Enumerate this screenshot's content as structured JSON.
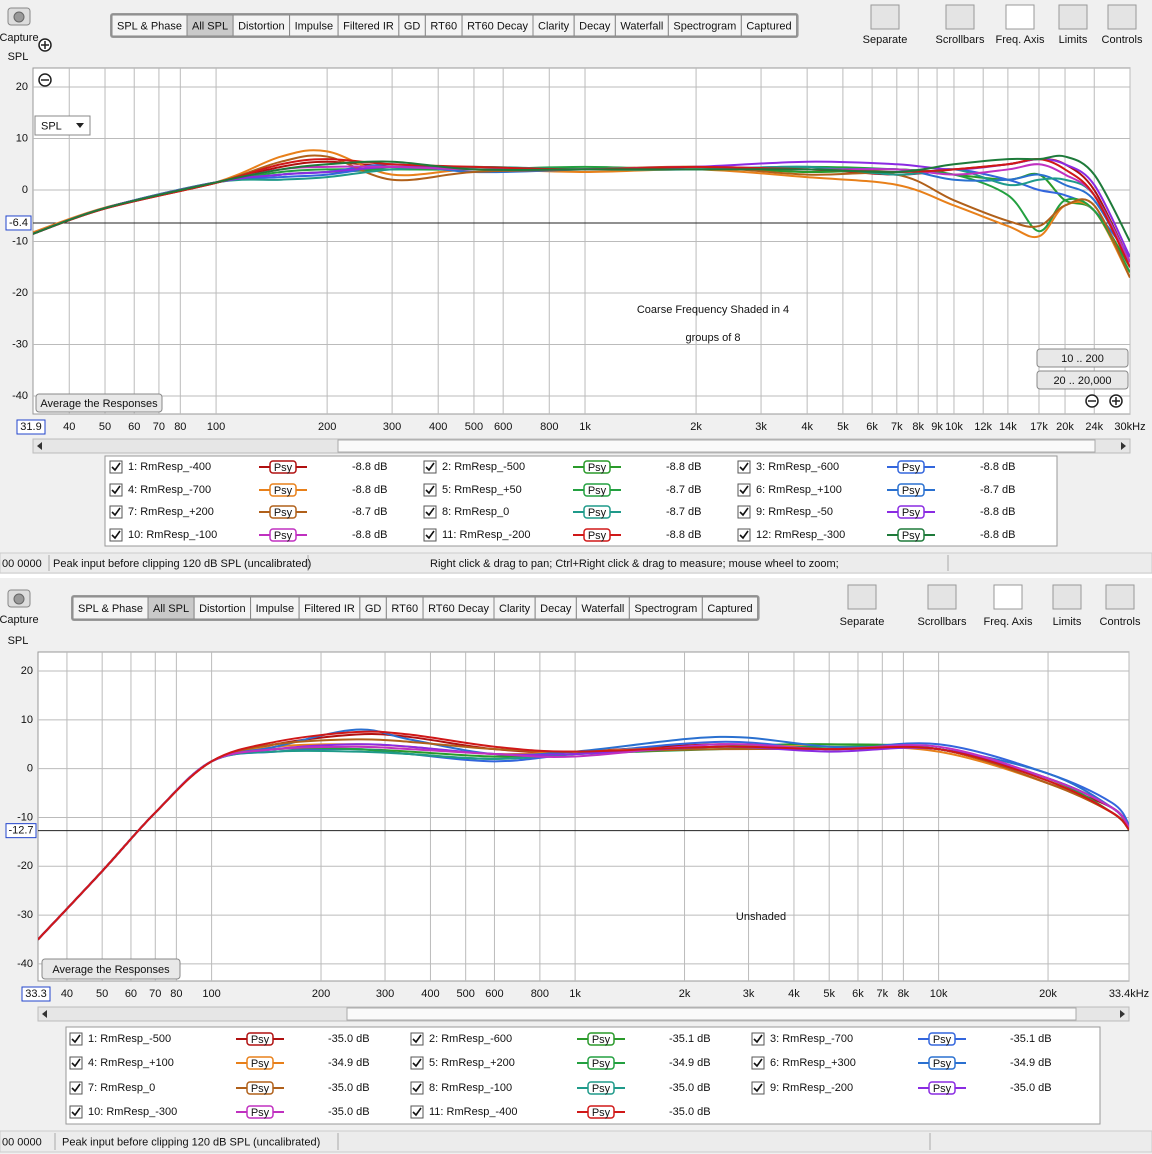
{
  "panels": [
    {
      "capture": "Capture",
      "tabs": [
        "SPL & Phase",
        "All SPL",
        "Distortion",
        "Impulse",
        "Filtered IR",
        "GD",
        "RT60",
        "RT60 Decay",
        "Clarity",
        "Decay",
        "Waterfall",
        "Spectrogram",
        "Captured"
      ],
      "active_tab": "All SPL",
      "tools": [
        "Separate",
        "Scrollbars",
        "Freq. Axis",
        "Limits",
        "Controls"
      ],
      "chart": {
        "type": "line",
        "y_label": "SPL",
        "dropdown": "SPL",
        "log_x": true,
        "grid": true,
        "xlim": [
          31.9,
          30000
        ],
        "ylim": [
          -43.5,
          23.7
        ],
        "yticks": [
          20,
          10,
          0,
          -10,
          -20,
          -30,
          -40
        ],
        "xticks": [
          40,
          50,
          60,
          70,
          80,
          100,
          200,
          300,
          400,
          500,
          600,
          800,
          {
            "value": 1000,
            "label": "1k"
          },
          {
            "value": 2000,
            "label": "2k"
          },
          {
            "value": 3000,
            "label": "3k"
          },
          {
            "value": 4000,
            "label": "4k"
          },
          {
            "value": 5000,
            "label": "5k"
          },
          {
            "value": 6000,
            "label": "6k"
          },
          {
            "value": 7000,
            "label": "7k"
          },
          {
            "value": 8000,
            "label": "8k"
          },
          {
            "value": 9000,
            "label": "9k"
          },
          {
            "value": 10000,
            "label": "10k"
          },
          {
            "value": 12000,
            "label": "12k"
          },
          {
            "value": 14000,
            "label": "14k"
          },
          {
            "value": 17000,
            "label": "17k"
          },
          {
            "value": 20000,
            "label": "20k"
          },
          {
            "value": 24000,
            "label": "24k"
          },
          {
            "value": 30000,
            "label": "30kHz"
          }
        ],
        "cursor": {
          "x": 31.9,
          "y": -6.4
        },
        "annotation": [
          "Coarse Frequency Shaded in 4",
          "groups of 8"
        ],
        "buttons": [
          "Average the Responses",
          "10 .. 200",
          "20 .. 20,000"
        ],
        "x": [
          31.9,
          50,
          100,
          150,
          200,
          300,
          500,
          1000,
          2000,
          4000,
          7000,
          10000,
          14000,
          17000,
          20000,
          24000,
          30000
        ],
        "series": [
          {
            "name": "1: RmResp_-400",
            "color": "#b01010",
            "level": "-8.8 dB",
            "values": [
              -8.5,
              -3.6,
              1.4,
              4.5,
              5.5,
              4.5,
              4,
              4,
              4,
              4,
              3,
              4,
              5,
              6,
              5,
              0,
              -14
            ]
          },
          {
            "name": "2: RmResp_-500",
            "color": "#2a9a2a",
            "level": "-8.8 dB",
            "values": [
              -8.5,
              -3.5,
              1.5,
              3,
              3.5,
              4,
              4.5,
              4,
              4.5,
              3.5,
              4,
              3,
              2,
              3,
              -2,
              -4,
              -15
            ]
          },
          {
            "name": "3: RmResp_-600",
            "color": "#3366dd",
            "level": "-8.8 dB",
            "values": [
              -8.5,
              -3.5,
              1.5,
              2.5,
              3,
              4.5,
              4,
              4,
              4,
              4.5,
              3,
              4,
              2,
              0,
              -1,
              -4,
              -13
            ]
          },
          {
            "name": "4: RmResp_-700",
            "color": "#e8801a",
            "level": "-8.8 dB",
            "values": [
              -8.2,
              -3.4,
              1.5,
              6.5,
              7.5,
              3,
              4,
              3.5,
              4,
              2.5,
              1,
              -3,
              -7,
              -9,
              -3,
              -4,
              -17
            ]
          },
          {
            "name": "5: RmResp_+50",
            "color": "#23a040",
            "level": "-8.7 dB",
            "values": [
              -8.5,
              -3.5,
              1.5,
              3.5,
              4,
              4,
              4,
              4.5,
              4,
              4.5,
              4,
              3,
              -1,
              -8,
              -2,
              -4,
              -16
            ]
          },
          {
            "name": "6: RmResp_+100",
            "color": "#2a70d0",
            "level": "-8.7 dB",
            "values": [
              -8.5,
              -3.5,
              1.5,
              3,
              3.5,
              5,
              3.5,
              4,
              4.5,
              4,
              4,
              2,
              2,
              3,
              1,
              -2,
              -14
            ]
          },
          {
            "name": "7: RmResp_+200",
            "color": "#b0601a",
            "level": "-8.7 dB",
            "values": [
              -8.5,
              -3.5,
              1.4,
              5.5,
              6.5,
              2,
              3.5,
              4,
              4.5,
              3,
              3,
              -2,
              -6,
              -7,
              -3,
              -3,
              -17
            ]
          },
          {
            "name": "8: RmResp_0",
            "color": "#1f9a8a",
            "level": "-8.7 dB",
            "values": [
              -8.5,
              -3.5,
              1.5,
              2,
              2.5,
              4,
              4.5,
              4,
              4,
              4.5,
              3,
              4,
              1,
              2,
              2,
              -1,
              -14
            ]
          },
          {
            "name": "9: RmResp_-50",
            "color": "#8a2be2",
            "level": "-8.8 dB",
            "values": [
              -8.5,
              -3.5,
              1.5,
              3,
              3.5,
              4.5,
              4,
              4,
              4.5,
              5.5,
              5,
              4,
              5,
              6,
              5,
              1,
              -13
            ]
          },
          {
            "name": "10: RmResp_-100",
            "color": "#c030c0",
            "level": "-8.8 dB",
            "values": [
              -8.5,
              -3.5,
              1.5,
              4,
              4.5,
              4.5,
              4,
              4,
              4.5,
              4,
              4,
              3,
              4,
              5,
              3,
              -1,
              -14
            ]
          },
          {
            "name": "11: RmResp_-200",
            "color": "#d01818",
            "level": "-8.8 dB",
            "values": [
              -8.5,
              -3.6,
              1.4,
              5,
              6,
              5,
              4.5,
              4,
              4.5,
              4,
              3.5,
              4,
              5,
              6,
              4,
              -1,
              -15
            ]
          },
          {
            "name": "12: RmResp_-300",
            "color": "#1e7a3a",
            "level": "-8.8 dB",
            "values": [
              -8.5,
              -3.5,
              1.5,
              4,
              5,
              5.5,
              4,
              4,
              4,
              4,
              3.5,
              5,
              6,
              6,
              6.5,
              3,
              -10
            ]
          }
        ]
      },
      "psy": "Psy",
      "status": [
        "00 0000",
        "Peak input before clipping 120 dB SPL (uncalibrated)",
        "Right click & drag to pan; Ctrl+Right click & drag to measure; mouse wheel to zoom;"
      ]
    },
    {
      "capture": "Capture",
      "tabs": [
        "SPL & Phase",
        "All SPL",
        "Distortion",
        "Impulse",
        "Filtered IR",
        "GD",
        "RT60",
        "RT60 Decay",
        "Clarity",
        "Decay",
        "Waterfall",
        "Spectrogram",
        "Captured"
      ],
      "active_tab": "All SPL",
      "tools": [
        "Separate",
        "Scrollbars",
        "Freq. Axis",
        "Limits",
        "Controls"
      ],
      "chart": {
        "type": "line",
        "y_label": "SPL",
        "log_x": true,
        "grid": true,
        "xlim": [
          33.3,
          33400
        ],
        "ylim": [
          -43.5,
          23.9
        ],
        "yticks": [
          20,
          10,
          0,
          -10,
          -20,
          -30,
          -40
        ],
        "xticks": [
          40,
          50,
          60,
          70,
          80,
          100,
          200,
          300,
          400,
          500,
          600,
          800,
          {
            "value": 1000,
            "label": "1k"
          },
          {
            "value": 2000,
            "label": "2k"
          },
          {
            "value": 3000,
            "label": "3k"
          },
          {
            "value": 4000,
            "label": "4k"
          },
          {
            "value": 5000,
            "label": "5k"
          },
          {
            "value": 6000,
            "label": "6k"
          },
          {
            "value": 7000,
            "label": "7k"
          },
          {
            "value": 8000,
            "label": "8k"
          },
          {
            "value": 10000,
            "label": "10k"
          },
          {
            "value": 20000,
            "label": "20k"
          },
          {
            "value": 33400,
            "label": "33.4kHz"
          }
        ],
        "cursor": {
          "x": 33.3,
          "y": -12.7
        },
        "annotation": [
          "Unshaded"
        ],
        "buttons": [
          "Average the Responses"
        ],
        "x": [
          33.3,
          50,
          70,
          100,
          150,
          250,
          350,
          600,
          1000,
          2500,
          5000,
          10000,
          20000,
          30000,
          33400
        ],
        "series": [
          {
            "name": "1: RmResp_-500",
            "color": "#b01010",
            "level": "-35.0 dB",
            "values": [
              -35,
              -21,
              -9,
              1.5,
              5,
              7,
              6.5,
              4,
              3.5,
              5,
              4,
              4,
              -3,
              -8,
              -12
            ]
          },
          {
            "name": "2: RmResp_-600",
            "color": "#2a9a2a",
            "level": "-35.1 dB",
            "values": [
              -35,
              -21,
              -9,
              1.5,
              4,
              4,
              3.5,
              2.5,
              3,
              4.5,
              5,
              4,
              -2,
              -8,
              -12.5
            ]
          },
          {
            "name": "3: RmResp_-700",
            "color": "#3366dd",
            "level": "-35.1 dB",
            "values": [
              -35,
              -21,
              -9,
              1.5,
              3.5,
              4,
              3,
              1.5,
              3,
              5.5,
              4,
              5,
              -1,
              -7,
              -11.5
            ]
          },
          {
            "name": "4: RmResp_+100",
            "color": "#e8801a",
            "level": "-34.9 dB",
            "values": [
              -35,
              -21,
              -9,
              1.5,
              4.5,
              5,
              4.5,
              3,
              3.5,
              4.5,
              4.5,
              3.5,
              -3,
              -9,
              -12.5
            ]
          },
          {
            "name": "5: RmResp_+200",
            "color": "#23a040",
            "level": "-34.9 dB",
            "values": [
              -35,
              -21,
              -9,
              1.5,
              4,
              4,
              3,
              2,
              3,
              4,
              4.5,
              4,
              -2,
              -9,
              -12.5
            ]
          },
          {
            "name": "6: RmResp_+300",
            "color": "#2a70d0",
            "level": "-34.9 dB",
            "values": [
              -35,
              -21,
              -9,
              1.5,
              4.5,
              8,
              6,
              3,
              3.5,
              6.5,
              4.5,
              4,
              -1,
              -8,
              -12
            ]
          },
          {
            "name": "7: RmResp_0",
            "color": "#b0601a",
            "level": "-35.0 dB",
            "values": [
              -35,
              -21,
              -9,
              1.5,
              5,
              6,
              5.5,
              4,
              3.5,
              4,
              4,
              4,
              -3,
              -9,
              -12.5
            ]
          },
          {
            "name": "8: RmResp_-100",
            "color": "#1f9a8a",
            "level": "-35.0 dB",
            "values": [
              -35,
              -21,
              -9,
              1.5,
              3.5,
              3.5,
              3,
              2,
              3,
              4.5,
              4,
              4,
              -2,
              -8,
              -12
            ]
          },
          {
            "name": "9: RmResp_-200",
            "color": "#8a2be2",
            "level": "-35.0 dB",
            "values": [
              -35,
              -21,
              -9,
              1.5,
              4,
              5,
              4.5,
              3,
              3,
              4.5,
              3.5,
              4,
              -2,
              -8,
              -12
            ]
          },
          {
            "name": "10: RmResp_-300",
            "color": "#c030c0",
            "level": "-35.0 dB",
            "values": [
              -35,
              -21,
              -9,
              1.5,
              4,
              4.5,
              4,
              3,
              2.5,
              5,
              4,
              4.5,
              -2,
              -8,
              -12
            ]
          },
          {
            "name": "11: RmResp_-400",
            "color": "#d01818",
            "level": "-35.0 dB",
            "values": [
              -35,
              -21,
              -9,
              1.5,
              5.5,
              7.5,
              7,
              4.5,
              3.5,
              4.5,
              4,
              4,
              -2.5,
              -9,
              -12.5
            ]
          }
        ]
      },
      "psy": "Psy",
      "status": [
        "00 0000",
        "Peak input before clipping 120 dB SPL (uncalibrated)"
      ]
    }
  ]
}
